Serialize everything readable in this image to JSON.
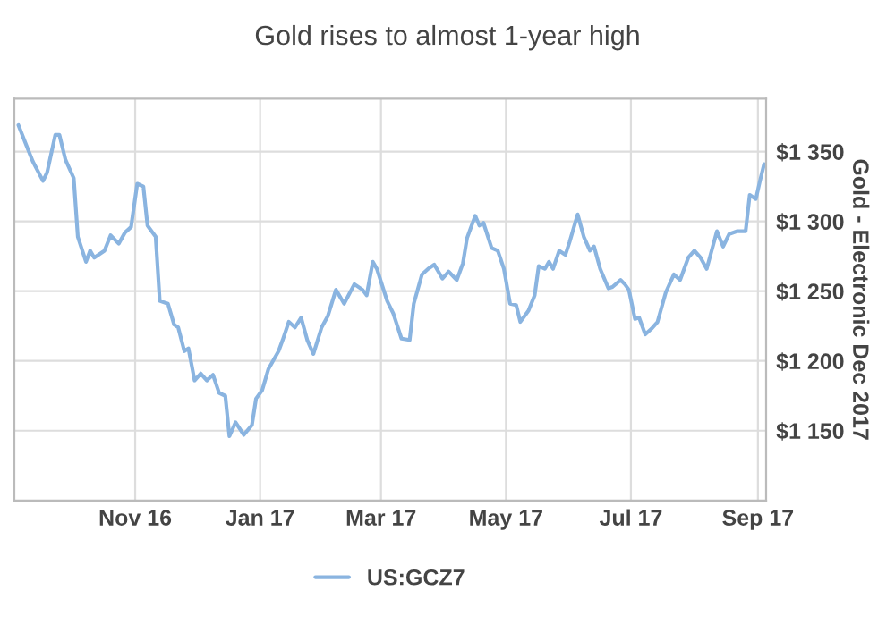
{
  "chart_data": {
    "type": "line",
    "title": "Gold rises to almost 1-year high",
    "ylabel": "Gold - Electronic Dec 2017",
    "x": [
      "2016-09-05",
      "2016-09-09",
      "2016-09-12",
      "2016-09-17",
      "2016-09-19",
      "2016-09-23",
      "2016-09-25",
      "2016-09-28",
      "2016-10-02",
      "2016-10-04",
      "2016-10-08",
      "2016-10-10",
      "2016-10-12",
      "2016-10-17",
      "2016-10-20",
      "2016-10-24",
      "2016-10-27",
      "2016-10-30",
      "2016-11-02",
      "2016-11-05",
      "2016-11-07",
      "2016-11-11",
      "2016-11-13",
      "2016-11-17",
      "2016-11-20",
      "2016-11-22",
      "2016-11-25",
      "2016-11-27",
      "2016-11-30",
      "2016-12-03",
      "2016-12-06",
      "2016-12-09",
      "2016-12-12",
      "2016-12-15",
      "2016-12-17",
      "2016-12-20",
      "2016-12-24",
      "2016-12-28",
      "2016-12-30",
      "2017-01-02",
      "2017-01-05",
      "2017-01-10",
      "2017-01-12",
      "2017-01-15",
      "2017-01-18",
      "2017-01-21",
      "2017-01-24",
      "2017-01-27",
      "2017-01-31",
      "2017-02-03",
      "2017-02-07",
      "2017-02-11",
      "2017-02-16",
      "2017-02-20",
      "2017-02-22",
      "2017-02-25",
      "2017-02-27",
      "2017-03-04",
      "2017-03-07",
      "2017-03-11",
      "2017-03-15",
      "2017-03-17",
      "2017-03-21",
      "2017-03-24",
      "2017-03-27",
      "2017-03-31",
      "2017-04-03",
      "2017-04-07",
      "2017-04-10",
      "2017-04-12",
      "2017-04-16",
      "2017-04-18",
      "2017-04-20",
      "2017-04-24",
      "2017-04-27",
      "2017-04-30",
      "2017-05-03",
      "2017-05-06",
      "2017-05-08",
      "2017-05-12",
      "2017-05-15",
      "2017-05-17",
      "2017-05-20",
      "2017-05-22",
      "2017-05-24",
      "2017-05-27",
      "2017-05-30",
      "2017-06-01",
      "2017-06-05",
      "2017-06-08",
      "2017-06-11",
      "2017-06-13",
      "2017-06-16",
      "2017-06-20",
      "2017-06-22",
      "2017-06-26",
      "2017-06-28",
      "2017-06-30",
      "2017-07-03",
      "2017-07-05",
      "2017-07-08",
      "2017-07-11",
      "2017-07-14",
      "2017-07-18",
      "2017-07-22",
      "2017-07-25",
      "2017-07-29",
      "2017-08-01",
      "2017-08-04",
      "2017-08-07",
      "2017-08-12",
      "2017-08-15",
      "2017-08-18",
      "2017-08-22",
      "2017-08-26",
      "2017-08-28",
      "2017-08-31",
      "2017-09-02",
      "2017-09-04"
    ],
    "series": [
      {
        "name": "US:GCZ7",
        "color": "#8ab4e0",
        "values": [
          1369,
          1354,
          1343,
          1329,
          1335,
          1362,
          1362,
          1344,
          1331,
          1289,
          1271,
          1279,
          1274,
          1279,
          1290,
          1284,
          1292,
          1296,
          1327,
          1325,
          1297,
          1289,
          1243,
          1241,
          1226,
          1224,
          1207,
          1209,
          1186,
          1191,
          1186,
          1190,
          1177,
          1175,
          1146,
          1156,
          1147,
          1154,
          1173,
          1179,
          1194,
          1207,
          1215,
          1228,
          1224,
          1231,
          1215,
          1205,
          1224,
          1232,
          1251,
          1241,
          1255,
          1251,
          1247,
          1271,
          1266,
          1243,
          1234,
          1216,
          1215,
          1241,
          1262,
          1266,
          1269,
          1259,
          1264,
          1258,
          1270,
          1288,
          1304,
          1297,
          1299,
          1281,
          1279,
          1266,
          1241,
          1240,
          1228,
          1236,
          1247,
          1268,
          1266,
          1271,
          1266,
          1279,
          1276,
          1285,
          1305,
          1289,
          1279,
          1282,
          1266,
          1252,
          1253,
          1258,
          1255,
          1251,
          1230,
          1231,
          1219,
          1223,
          1228,
          1249,
          1262,
          1258,
          1274,
          1279,
          1274,
          1266,
          1293,
          1282,
          1291,
          1293,
          1293,
          1319,
          1316,
          1329,
          1341
        ]
      }
    ],
    "xlim": [
      "2016-09-03",
      "2017-09-05"
    ],
    "xticks": [
      {
        "value": "2016-11-01",
        "label": "Nov 16"
      },
      {
        "value": "2017-01-01",
        "label": "Jan 17"
      },
      {
        "value": "2017-03-01",
        "label": "Mar 17"
      },
      {
        "value": "2017-05-01",
        "label": "May 17"
      },
      {
        "value": "2017-07-01",
        "label": "Jul 17"
      },
      {
        "value": "2017-09-01",
        "label": "Sep 17"
      }
    ],
    "ylim": [
      1100,
      1388
    ],
    "yticks": [
      {
        "value": 1150,
        "label": "$1 150"
      },
      {
        "value": 1200,
        "label": "$1 200"
      },
      {
        "value": 1250,
        "label": "$1 250"
      },
      {
        "value": 1300,
        "label": "$1 300"
      },
      {
        "value": 1350,
        "label": "$1 350"
      }
    ],
    "grid": true,
    "legend": "bottom",
    "marker": "none",
    "line_style": "solid"
  }
}
